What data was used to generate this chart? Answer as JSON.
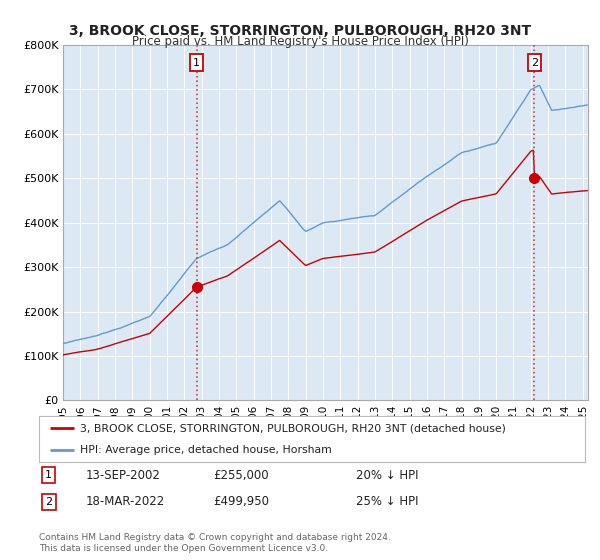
{
  "title": "3, BROOK CLOSE, STORRINGTON, PULBOROUGH, RH20 3NT",
  "subtitle": "Price paid vs. HM Land Registry's House Price Index (HPI)",
  "plot_bg_color": "#dce9f5",
  "legend_label_red": "3, BROOK CLOSE, STORRINGTON, PULBOROUGH, RH20 3NT (detached house)",
  "legend_label_blue": "HPI: Average price, detached house, Horsham",
  "ann1_date_str": "13-SEP-2002",
  "ann1_price": 255000,
  "ann1_note": "20% ↓ HPI",
  "ann2_date_str": "18-MAR-2022",
  "ann2_price": 499950,
  "ann2_note": "25% ↓ HPI",
  "footer": "Contains HM Land Registry data © Crown copyright and database right 2024.\nThis data is licensed under the Open Government Licence v3.0.",
  "ylim": [
    0,
    800000
  ],
  "yticks": [
    0,
    100000,
    200000,
    300000,
    400000,
    500000,
    600000,
    700000,
    800000
  ],
  "ytick_labels": [
    "£0",
    "£100K",
    "£200K",
    "£300K",
    "£400K",
    "£500K",
    "£600K",
    "£700K",
    "£800K"
  ],
  "red_color": "#cc0000",
  "blue_color": "#6699cc",
  "vline_color": "#cc4444",
  "box_edge_color": "#cc0000",
  "t1": 2002.71,
  "t2": 2022.21,
  "price1": 255000,
  "price2": 499950
}
